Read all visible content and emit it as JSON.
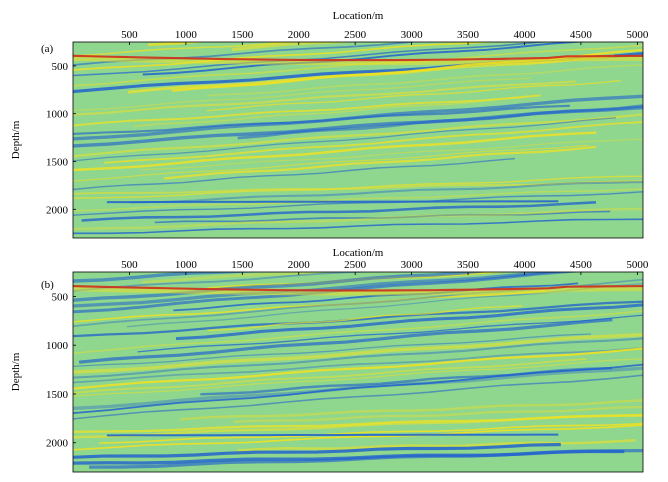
{
  "chart_data": [
    {
      "type": "heatmap",
      "panel_label": "(a)",
      "xlabel": "Location/m",
      "ylabel": "Depth/m",
      "xlim": [
        0,
        5050
      ],
      "ylim": [
        2300,
        250
      ],
      "x_ticks": [
        500,
        1000,
        1500,
        2000,
        2500,
        3000,
        3500,
        4000,
        4500,
        5000
      ],
      "y_ticks": [
        500,
        1000,
        1500,
        2000
      ],
      "colormap": {
        "negative": "#1e5fd0",
        "background": "#8fd68f",
        "positive": "#f2e21e",
        "strong_positive": "#d2301a"
      }
    },
    {
      "type": "heatmap",
      "panel_label": "(b)",
      "xlabel": "Location/m",
      "ylabel": "Depth/m",
      "xlim": [
        0,
        5050
      ],
      "ylim": [
        2300,
        250
      ],
      "x_ticks": [
        500,
        1000,
        1500,
        2000,
        2500,
        3000,
        3500,
        4000,
        4500,
        5000
      ],
      "y_ticks": [
        500,
        1000,
        1500,
        2000
      ],
      "colormap": {
        "negative": "#1e5fd0",
        "background": "#8fd68f",
        "positive": "#f2e21e",
        "strong_positive": "#d2301a"
      }
    }
  ]
}
